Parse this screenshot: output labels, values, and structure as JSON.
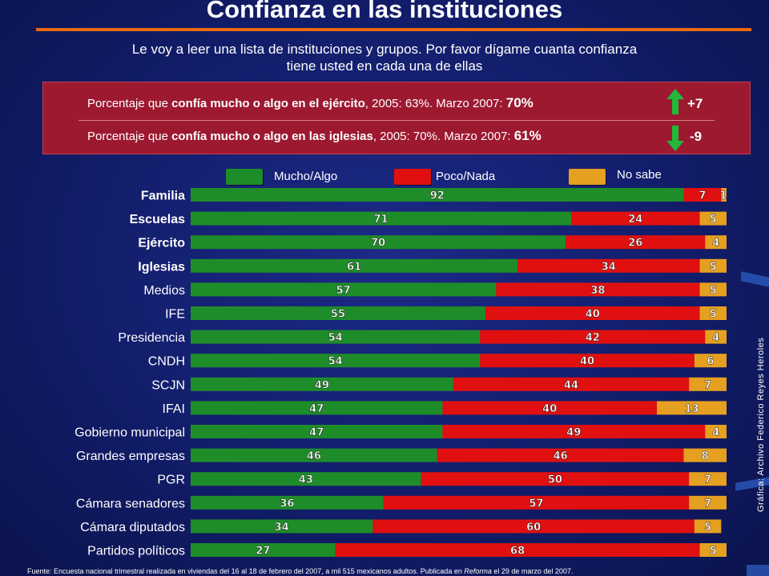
{
  "header": {
    "title": "Confianza en las instituciones",
    "subtitle_line1": "Le voy a leer una lista de instituciones y grupos. Por favor dígame cuanta confianza",
    "subtitle_line2": "tiene usted en cada una de ellas"
  },
  "stats": [
    {
      "prefix": "Porcentaje que ",
      "bold": "confía mucho o algo en el ejército",
      "middle": ",   2005: 63%. Marzo 2007: ",
      "value": "70%",
      "change": "+7",
      "direction": "up"
    },
    {
      "prefix": "Porcentaje que ",
      "bold": "confía mucho o algo en las iglesias",
      "middle": ", 2005: 70%. Marzo 2007: ",
      "value": "61%",
      "change": "-9",
      "direction": "down"
    }
  ],
  "legend": [
    {
      "label": "Mucho/Algo",
      "color": "#1f8c2a"
    },
    {
      "label": "Poco/Nada",
      "color": "#e01010"
    },
    {
      "label": "No sabe",
      "color": "#e6a020"
    }
  ],
  "side_credit": "Gráfica: Archivo Federico Reyes Heroles",
  "footer": {
    "text_before": "Fuente: Encuesta nacional trimestral realizada en viviendas del 16 al 18 de febrero del 2007, a mil 515 mexicanos adultos. Publicada en ",
    "italic": "Reforma",
    "text_after": " el 29 de marzo del 2007."
  },
  "chart_data": {
    "type": "bar",
    "orientation": "horizontal",
    "stacked": true,
    "xlim": [
      0,
      100
    ],
    "grid": false,
    "legend_position": "top",
    "categories": [
      "Familia",
      "Escuelas",
      "Ejército",
      "Iglesias",
      "Medios",
      "IFE",
      "Presidencia",
      "CNDH",
      "SCJN",
      "IFAI",
      "Gobierno municipal",
      "Grandes empresas",
      "PGR",
      "Cámara senadores",
      "Cámara diputados",
      "Partidos políticos"
    ],
    "bold_categories": [
      "Familia",
      "Escuelas",
      "Ejército",
      "Iglesias"
    ],
    "series": [
      {
        "name": "Mucho/Algo",
        "color": "#1f8c2a",
        "values": [
          92,
          71,
          70,
          61,
          57,
          55,
          54,
          54,
          49,
          47,
          47,
          46,
          43,
          36,
          34,
          27
        ]
      },
      {
        "name": "Poco/Nada",
        "color": "#e01010",
        "values": [
          7,
          24,
          26,
          34,
          38,
          40,
          42,
          40,
          44,
          40,
          49,
          46,
          50,
          57,
          60,
          68
        ]
      },
      {
        "name": "No sabe",
        "color": "#e6a020",
        "values": [
          1,
          5,
          4,
          5,
          5,
          5,
          4,
          6,
          7,
          13,
          4,
          8,
          7,
          7,
          5,
          5
        ]
      }
    ]
  }
}
